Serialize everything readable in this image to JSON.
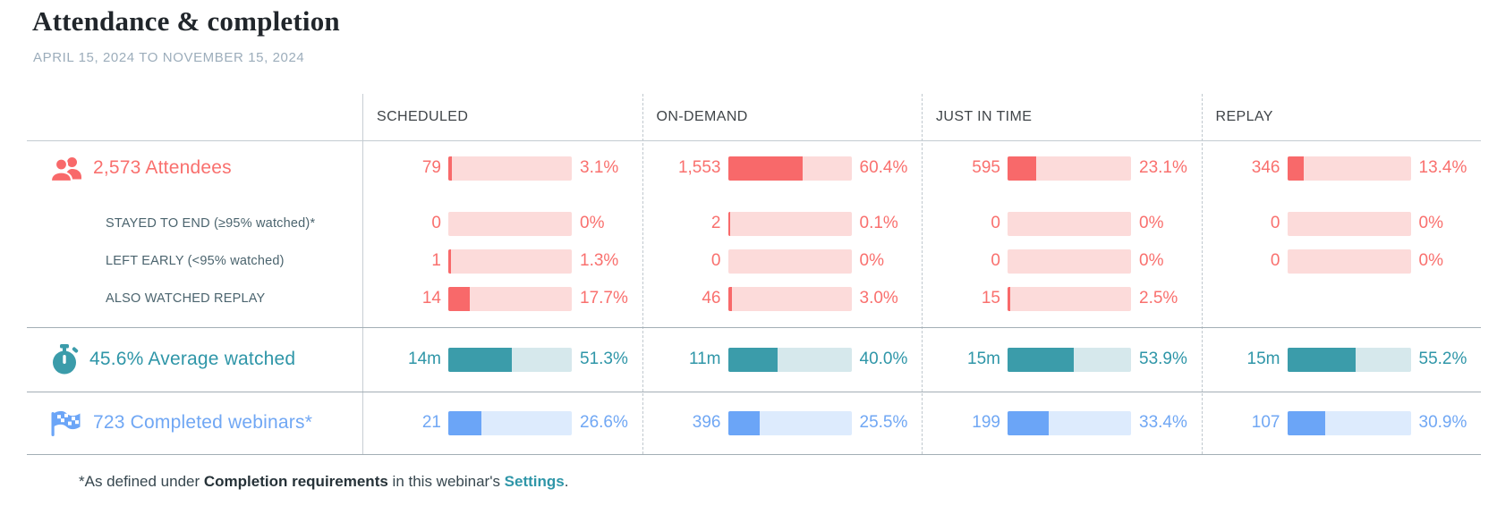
{
  "page": {
    "title": "Attendance & completion",
    "subtitle": "APRIL 15, 2024 TO NOVEMBER 15, 2024"
  },
  "columns": [
    "SCHEDULED",
    "ON-DEMAND",
    "JUST IN TIME",
    "REPLAY"
  ],
  "theme": {
    "coral_text": "#f9706e",
    "coral_fill": "#f8696a",
    "coral_track": "#fcdbda",
    "teal_text": "#2f96a8",
    "teal_fill": "#3b9caa",
    "teal_track": "#d6e8ec",
    "blue_text": "#70a7f4",
    "blue_fill": "#6ba5f7",
    "blue_track": "#ddebfd",
    "sublabel_text": "#4b646e",
    "header_text": "#3f4448"
  },
  "metrics": [
    {
      "id": "attendees",
      "icon": "people-icon",
      "label": "2,573 Attendees",
      "palette": "coral",
      "cells": [
        {
          "value": "79",
          "pct_label": "3.1%",
          "pct": 3.1
        },
        {
          "value": "1,553",
          "pct_label": "60.4%",
          "pct": 60.4
        },
        {
          "value": "595",
          "pct_label": "23.1%",
          "pct": 23.1
        },
        {
          "value": "346",
          "pct_label": "13.4%",
          "pct": 13.4
        }
      ],
      "subrows": [
        {
          "label": "STAYED TO END (≥95% watched)*",
          "cells": [
            {
              "value": "0",
              "pct_label": "0%",
              "pct": 0
            },
            {
              "value": "2",
              "pct_label": "0.1%",
              "pct": 0.1
            },
            {
              "value": "0",
              "pct_label": "0%",
              "pct": 0
            },
            {
              "value": "0",
              "pct_label": "0%",
              "pct": 0
            }
          ]
        },
        {
          "label": "LEFT EARLY (<95% watched)",
          "cells": [
            {
              "value": "1",
              "pct_label": "1.3%",
              "pct": 1.3
            },
            {
              "value": "0",
              "pct_label": "0%",
              "pct": 0
            },
            {
              "value": "0",
              "pct_label": "0%",
              "pct": 0
            },
            {
              "value": "0",
              "pct_label": "0%",
              "pct": 0
            }
          ]
        },
        {
          "label": "ALSO WATCHED REPLAY",
          "cells": [
            {
              "value": "14",
              "pct_label": "17.7%",
              "pct": 17.7
            },
            {
              "value": "46",
              "pct_label": "3.0%",
              "pct": 3.0
            },
            {
              "value": "15",
              "pct_label": "2.5%",
              "pct": 2.5
            },
            null
          ]
        }
      ]
    },
    {
      "id": "average-watched",
      "icon": "stopwatch-icon",
      "label": "45.6% Average watched",
      "palette": "teal",
      "cells": [
        {
          "value": "14m",
          "pct_label": "51.3%",
          "pct": 51.3
        },
        {
          "value": "11m",
          "pct_label": "40.0%",
          "pct": 40.0
        },
        {
          "value": "15m",
          "pct_label": "53.9%",
          "pct": 53.9
        },
        {
          "value": "15m",
          "pct_label": "55.2%",
          "pct": 55.2
        }
      ]
    },
    {
      "id": "completed-webinars",
      "icon": "finish-flag-icon",
      "label": "723 Completed webinars*",
      "palette": "blue",
      "cells": [
        {
          "value": "21",
          "pct_label": "26.6%",
          "pct": 26.6
        },
        {
          "value": "396",
          "pct_label": "25.5%",
          "pct": 25.5
        },
        {
          "value": "199",
          "pct_label": "33.4%",
          "pct": 33.4
        },
        {
          "value": "107",
          "pct_label": "30.9%",
          "pct": 30.9
        }
      ]
    }
  ],
  "footnote": {
    "prefix": "*As defined under ",
    "bold": "Completion requirements",
    "middle": " in this webinar's ",
    "link": "Settings",
    "suffix": "."
  },
  "chart_data": {
    "type": "table",
    "title": "Attendance & completion",
    "subtitle": "APRIL 15, 2024 TO NOVEMBER 15, 2024",
    "columns": [
      "SCHEDULED",
      "ON-DEMAND",
      "JUST IN TIME",
      "REPLAY"
    ],
    "rows": [
      {
        "label": "2,573 Attendees",
        "counts": [
          79,
          1553,
          595,
          346
        ],
        "percents": [
          3.1,
          60.4,
          23.1,
          13.4
        ]
      },
      {
        "label": "STAYED TO END (≥95% watched)*",
        "counts": [
          0,
          2,
          0,
          0
        ],
        "percents": [
          0,
          0.1,
          0,
          0
        ]
      },
      {
        "label": "LEFT EARLY (<95% watched)",
        "counts": [
          1,
          0,
          0,
          0
        ],
        "percents": [
          1.3,
          0,
          0,
          0
        ]
      },
      {
        "label": "ALSO WATCHED REPLAY",
        "counts": [
          14,
          46,
          15,
          null
        ],
        "percents": [
          17.7,
          3.0,
          2.5,
          null
        ]
      },
      {
        "label": "45.6% Average watched",
        "counts": [
          "14m",
          "11m",
          "15m",
          "15m"
        ],
        "percents": [
          51.3,
          40.0,
          53.9,
          55.2
        ]
      },
      {
        "label": "723 Completed webinars*",
        "counts": [
          21,
          396,
          199,
          107
        ],
        "percents": [
          26.6,
          25.5,
          33.4,
          30.9
        ]
      }
    ],
    "legend_position": "none",
    "grid": false
  }
}
